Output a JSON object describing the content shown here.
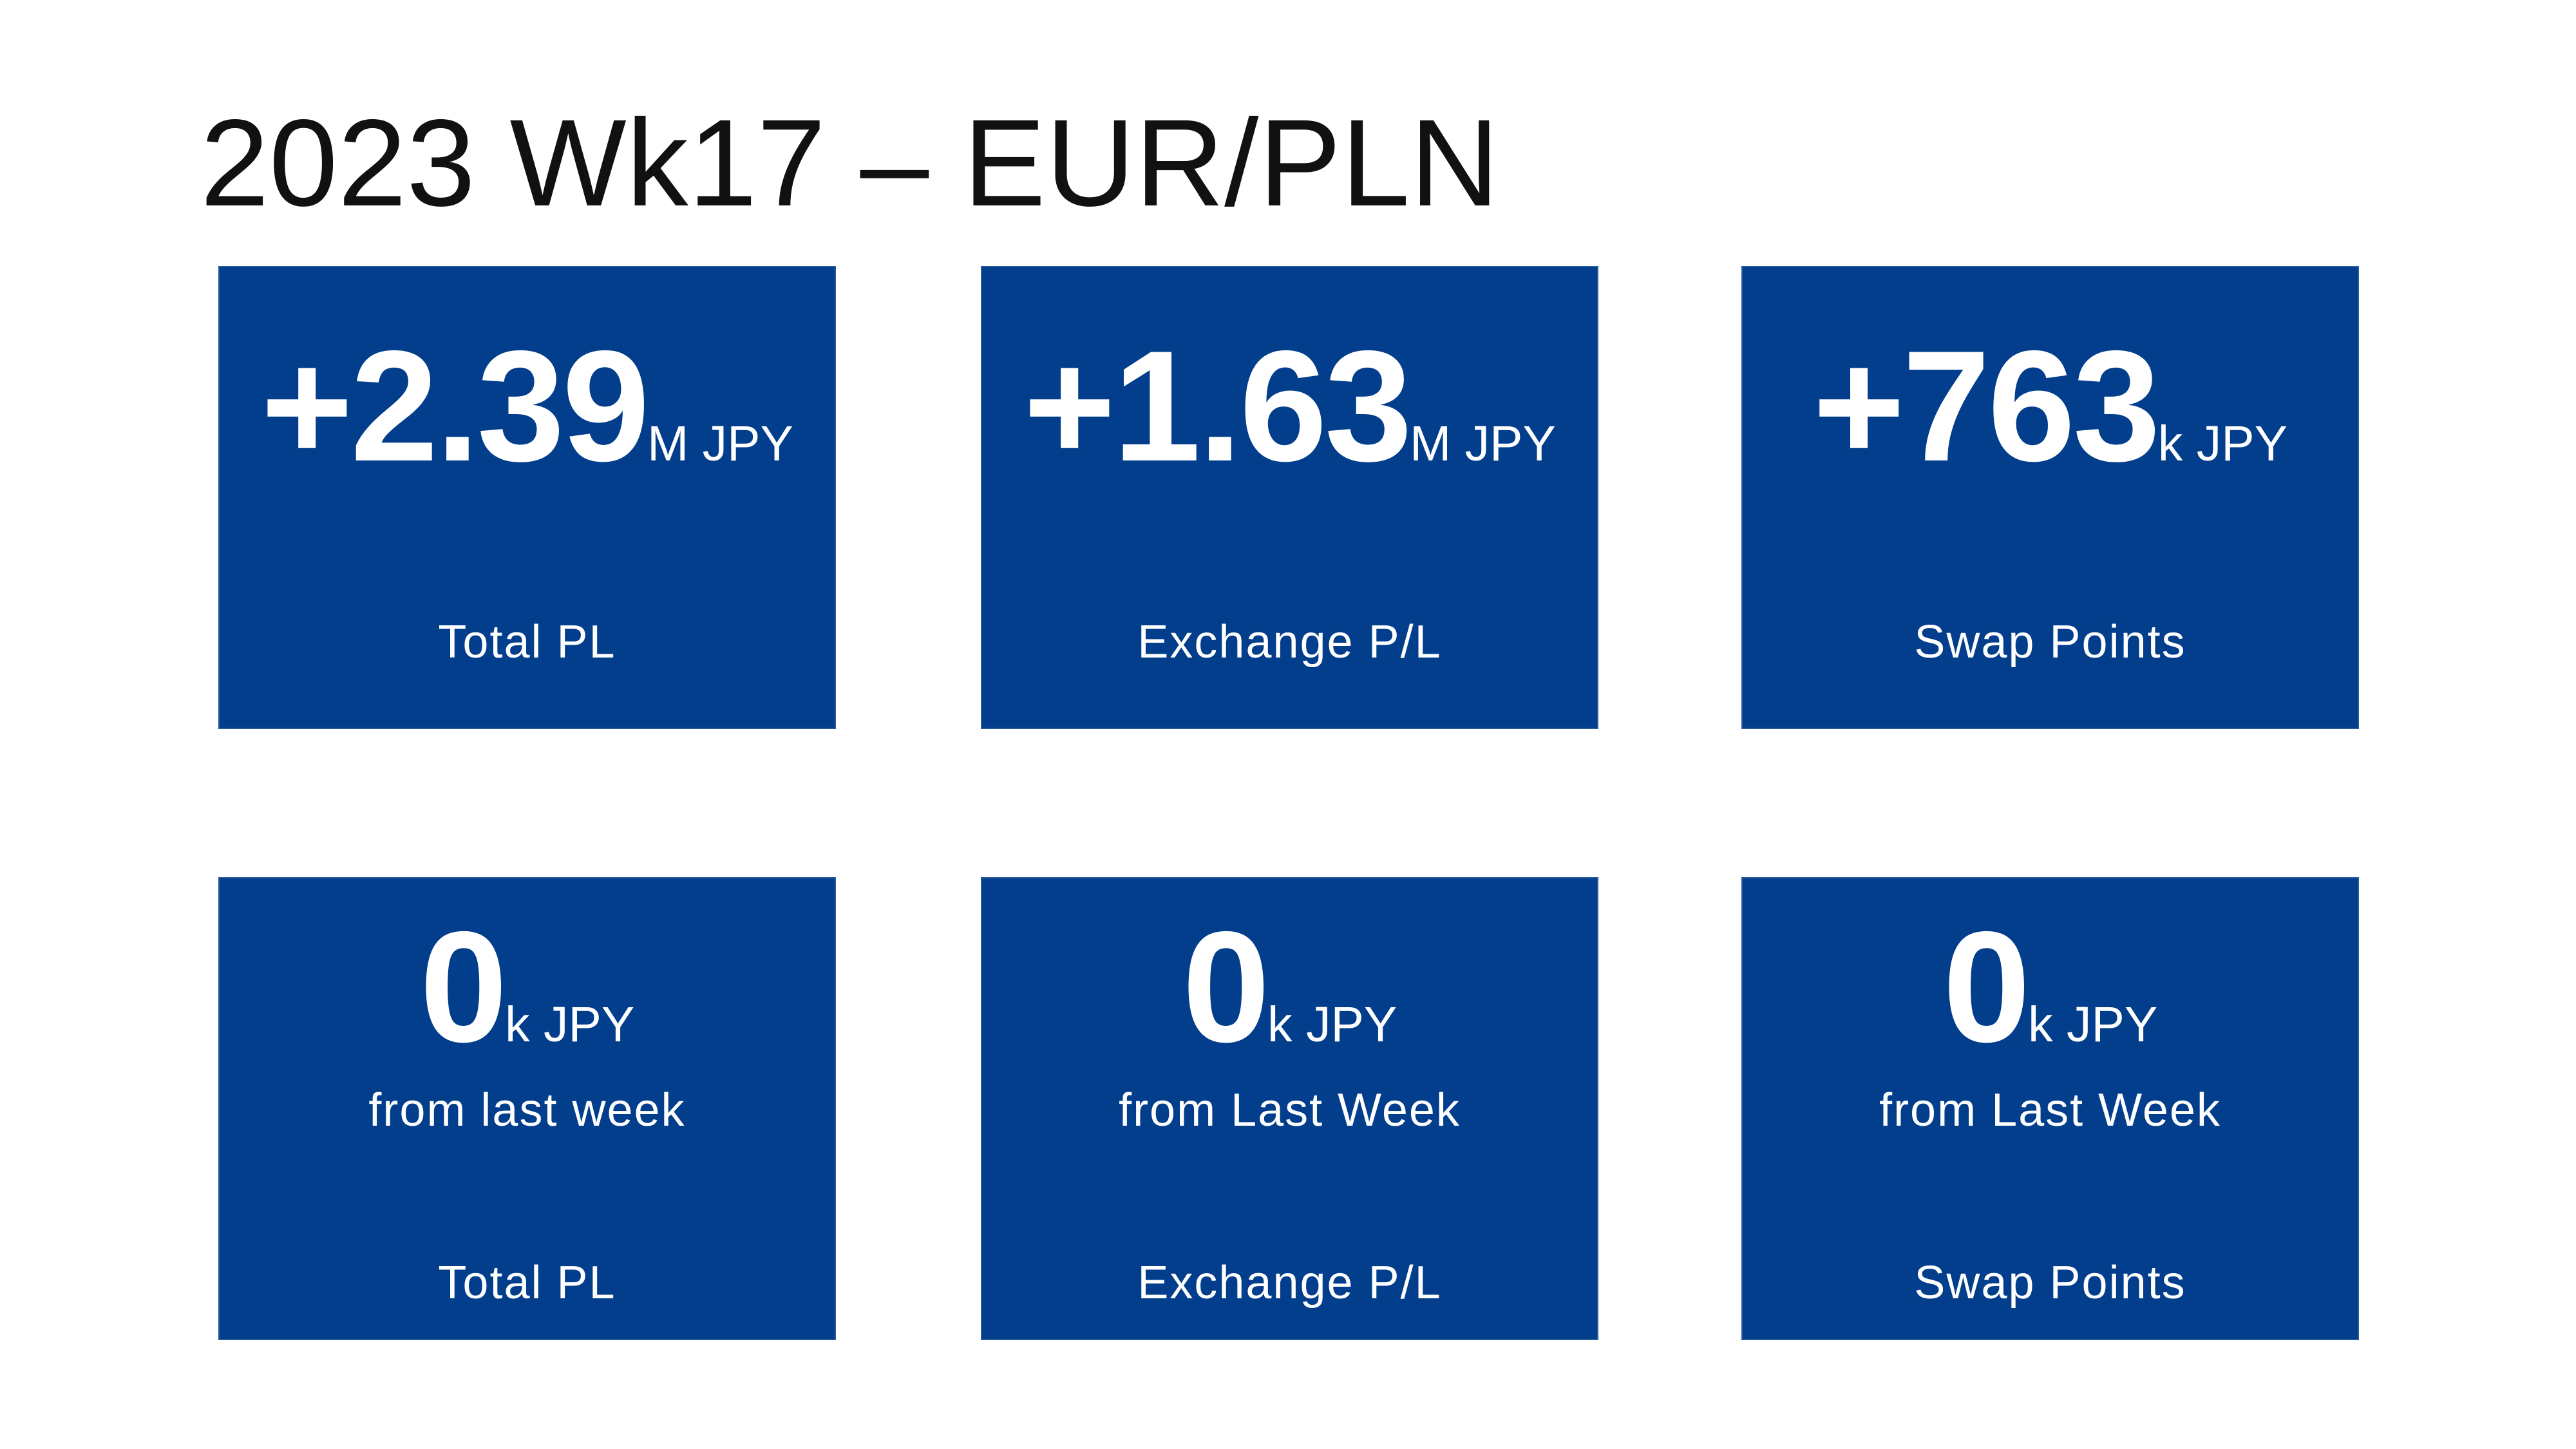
{
  "title": "2023 Wk17 – EUR/PLN",
  "totals": [
    {
      "value": "+2.39",
      "unit": "M JPY",
      "label": "Total PL"
    },
    {
      "value": "+1.63",
      "unit": "M JPY",
      "label": "Exchange P/L"
    },
    {
      "value": "+763",
      "unit": "k JPY",
      "label": "Swap Points"
    }
  ],
  "changes": [
    {
      "value": "0",
      "unit": "k JPY",
      "note": "from last week",
      "label": "Total PL"
    },
    {
      "value": "0",
      "unit": "k JPY",
      "note": "from Last Week",
      "label": "Exchange P/L"
    },
    {
      "value": "0",
      "unit": "k JPY",
      "note": "from Last Week",
      "label": "Swap Points"
    }
  ]
}
